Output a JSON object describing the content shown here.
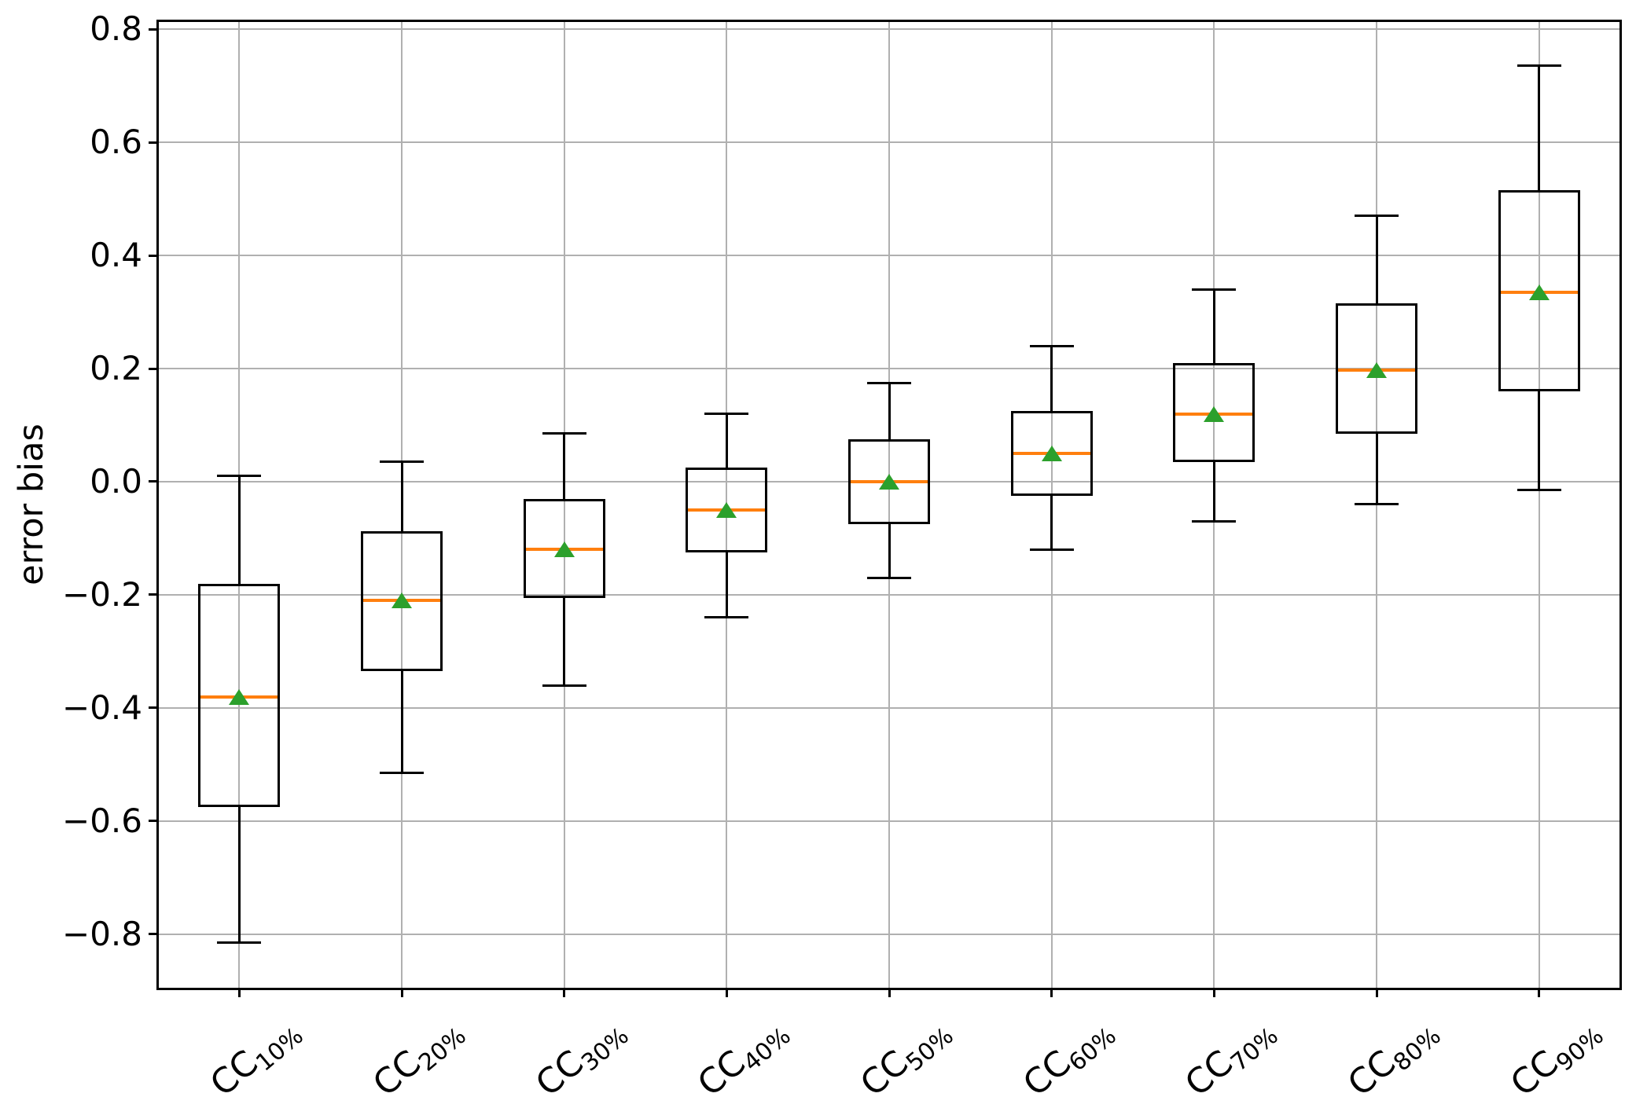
{
  "chart_data": {
    "type": "boxplot",
    "title": "",
    "xlabel": "",
    "ylabel": "error bias",
    "ylim": [
      -0.896,
      0.814
    ],
    "grid": true,
    "legend": "none",
    "xtick_rotation_deg": 40,
    "yticks": [
      0.8,
      0.6,
      0.4,
      0.2,
      0.0,
      -0.2,
      -0.4,
      -0.6,
      -0.8
    ],
    "ytick_labels": [
      "0.8",
      "0.6",
      "0.4",
      "0.2",
      "0.0",
      "−0.2",
      "−0.4",
      "−0.6",
      "−0.8"
    ],
    "categories": [
      {
        "prefix": "CC",
        "subscript": "10%"
      },
      {
        "prefix": "CC",
        "subscript": "20%"
      },
      {
        "prefix": "CC",
        "subscript": "30%"
      },
      {
        "prefix": "CC",
        "subscript": "40%"
      },
      {
        "prefix": "CC",
        "subscript": "50%"
      },
      {
        "prefix": "CC",
        "subscript": "60%"
      },
      {
        "prefix": "CC",
        "subscript": "70%"
      },
      {
        "prefix": "CC",
        "subscript": "80%"
      },
      {
        "prefix": "CC",
        "subscript": "90%"
      }
    ],
    "boxes": [
      {
        "label": "CC10%",
        "whislo": -0.815,
        "q1": -0.575,
        "med": -0.38,
        "q3": -0.18,
        "whishi": 0.01,
        "mean": -0.38
      },
      {
        "label": "CC20%",
        "whislo": -0.515,
        "q1": -0.335,
        "med": -0.21,
        "q3": -0.088,
        "whishi": 0.035,
        "mean": -0.21
      },
      {
        "label": "CC30%",
        "whislo": -0.36,
        "q1": -0.205,
        "med": -0.12,
        "q3": -0.03,
        "whishi": 0.085,
        "mean": -0.12
      },
      {
        "label": "CC40%",
        "whislo": -0.24,
        "q1": -0.125,
        "med": -0.05,
        "q3": 0.025,
        "whishi": 0.12,
        "mean": -0.05
      },
      {
        "label": "CC50%",
        "whislo": -0.17,
        "q1": -0.075,
        "med": 0.0,
        "q3": 0.075,
        "whishi": 0.175,
        "mean": 0.0
      },
      {
        "label": "CC60%",
        "whislo": -0.12,
        "q1": -0.025,
        "med": 0.05,
        "q3": 0.125,
        "whishi": 0.24,
        "mean": 0.05
      },
      {
        "label": "CC70%",
        "whislo": -0.07,
        "q1": 0.035,
        "med": 0.12,
        "q3": 0.21,
        "whishi": 0.34,
        "mean": 0.12
      },
      {
        "label": "CC80%",
        "whislo": -0.04,
        "q1": 0.085,
        "med": 0.197,
        "q3": 0.315,
        "whishi": 0.47,
        "mean": 0.197
      },
      {
        "label": "CC90%",
        "whislo": -0.015,
        "q1": 0.16,
        "med": 0.335,
        "q3": 0.515,
        "whishi": 0.735,
        "mean": 0.335
      }
    ],
    "colors": {
      "median": "#ff7f0e",
      "mean": "#2ca02c",
      "box_line": "#000000",
      "grid": "#b0b0b0",
      "background": "#ffffff"
    }
  }
}
